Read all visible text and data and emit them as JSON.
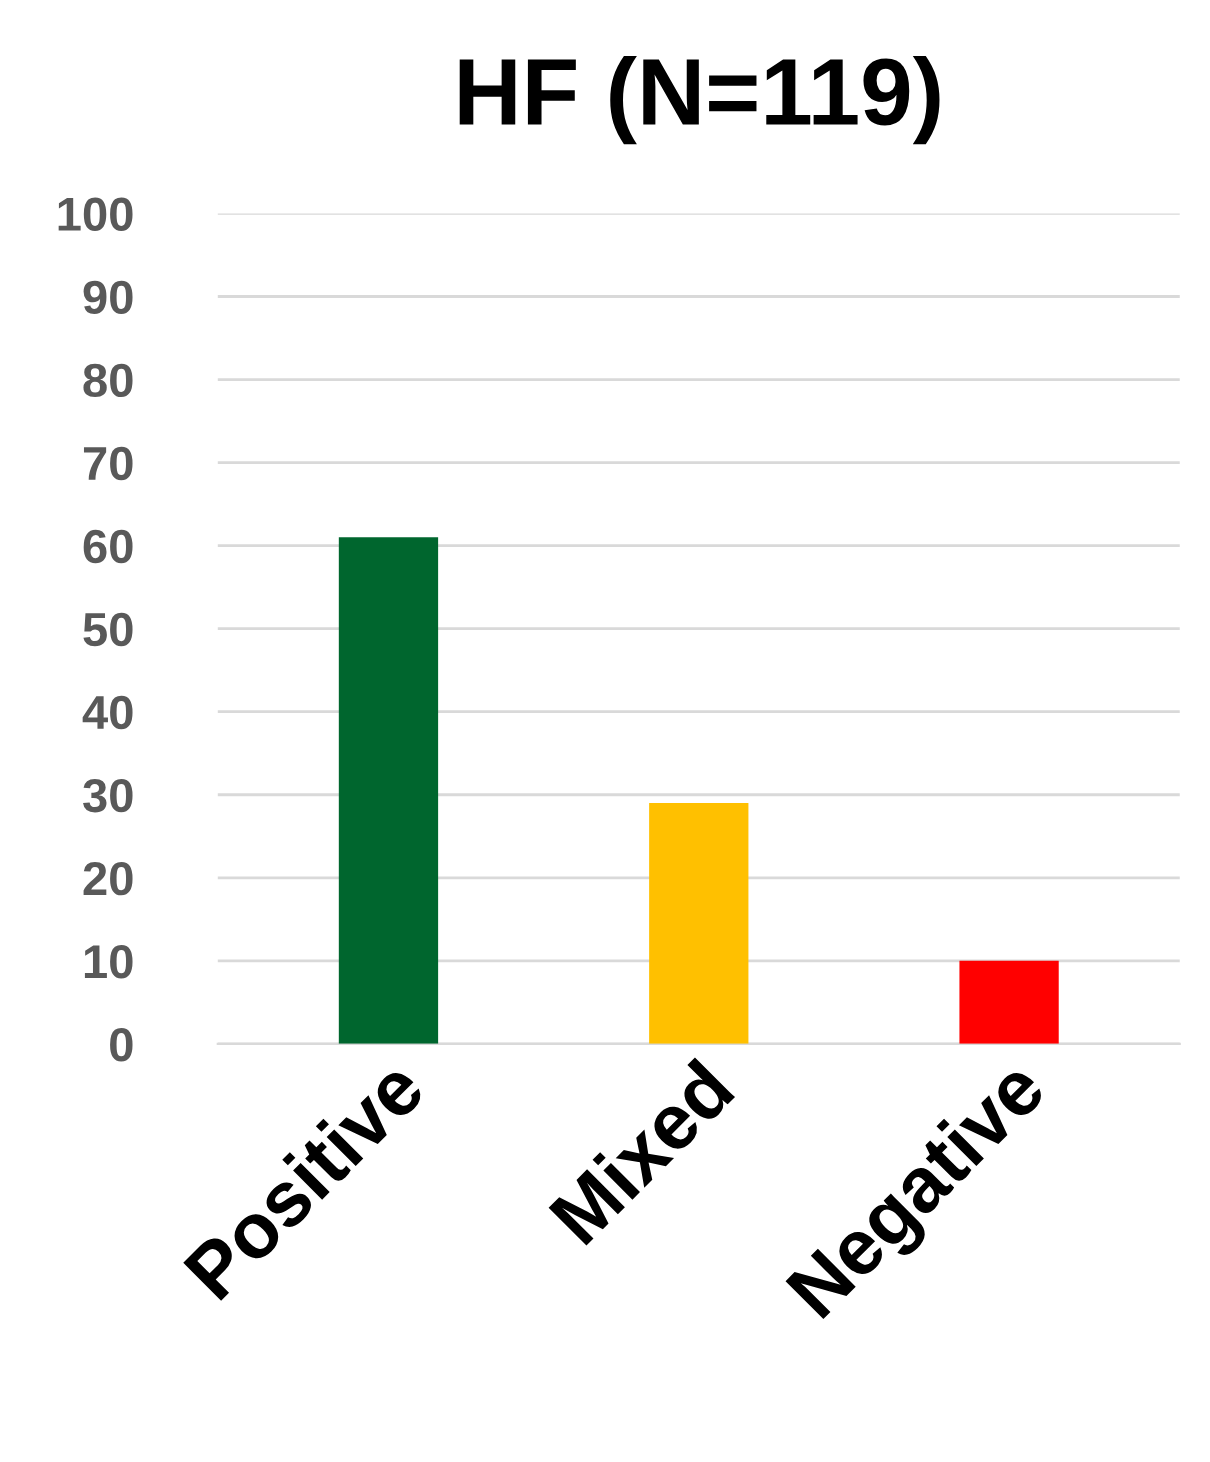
{
  "chart_data": {
    "type": "bar",
    "title": "HF (N=119)",
    "categories": [
      "Positive",
      "Mixed",
      "Negative"
    ],
    "values": [
      61,
      29,
      10
    ],
    "colors": [
      "#00662e",
      "#ffc000",
      "#ff0000"
    ],
    "ylim": [
      0,
      100
    ],
    "yticks": [
      0,
      10,
      20,
      30,
      40,
      50,
      60,
      70,
      80,
      90,
      100
    ],
    "grid": "y"
  }
}
